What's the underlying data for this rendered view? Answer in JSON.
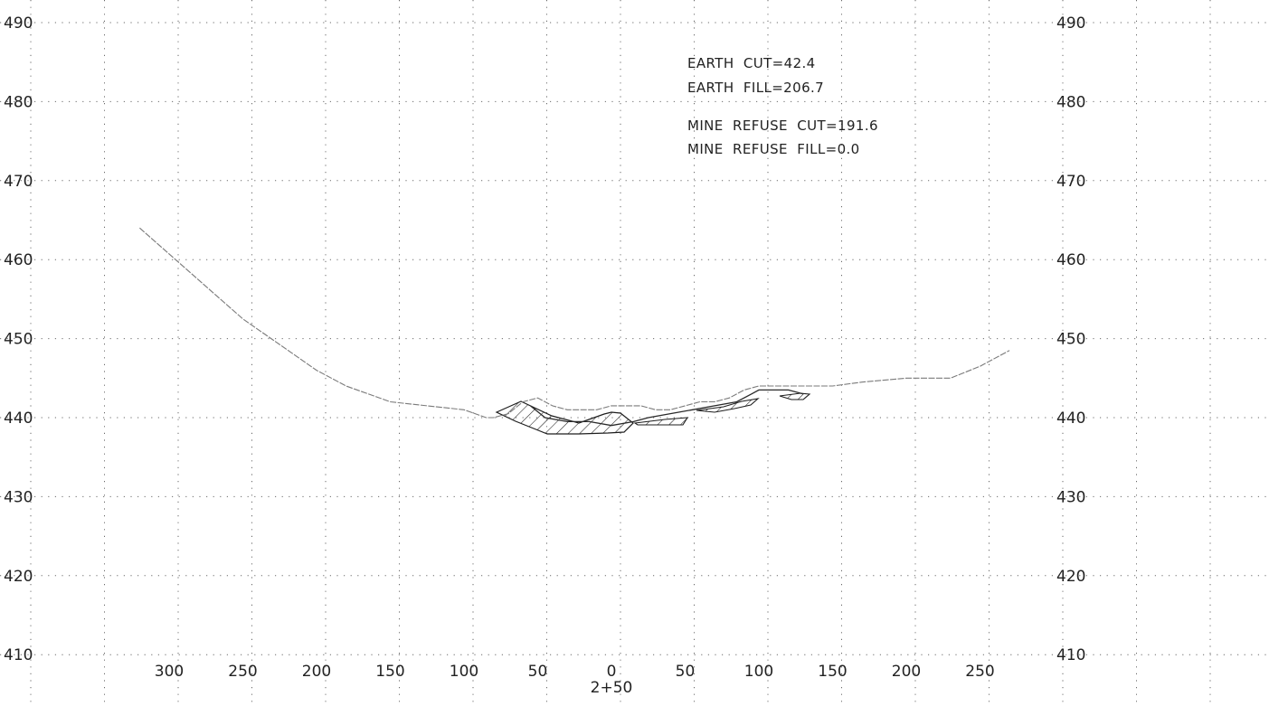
{
  "chart_data": {
    "type": "line",
    "station_label": "2+50",
    "x_tick_labels": [
      "300",
      "250",
      "200",
      "150",
      "100",
      "50",
      "0",
      "50",
      "100",
      "150",
      "200",
      "250"
    ],
    "x_tick_values": [
      -300,
      -250,
      -200,
      -150,
      -100,
      -50,
      0,
      50,
      100,
      150,
      200,
      250
    ],
    "y_tick_labels_left": [
      "490",
      "480",
      "470",
      "460",
      "450",
      "440",
      "430",
      "420",
      "410"
    ],
    "y_tick_labels_right": [
      "490",
      "480",
      "470",
      "460",
      "450",
      "440",
      "430",
      "420",
      "410"
    ],
    "y_tick_values": [
      490,
      480,
      470,
      460,
      450,
      440,
      430,
      420,
      410
    ],
    "xlim": [
      -355,
      365
    ],
    "ylim": [
      409,
      492
    ],
    "grid": true,
    "annotations": {
      "earth_cut": "EARTH  CUT=42.4",
      "earth_fill": "EARTH  FILL=206.7",
      "mine_refuse_cut": "MINE  REFUSE  CUT=191.6",
      "mine_refuse_fill": "MINE  REFUSE  FILL=0.0"
    },
    "series": [
      {
        "x": [
          -320,
          -250,
          -200,
          -180,
          -150,
          -100,
          -85,
          -80,
          -70,
          -60,
          -50,
          -40,
          -30,
          -20,
          -10,
          0,
          10,
          20,
          30,
          40,
          50,
          60,
          70,
          80,
          90,
          100,
          110,
          120,
          130,
          150,
          170,
          200,
          230,
          250,
          270
        ],
        "y": [
          464,
          452.5,
          446,
          444,
          442,
          441,
          440,
          440,
          440.5,
          442,
          442.5,
          441.5,
          441,
          441,
          441,
          441.5,
          441.5,
          441.5,
          441,
          441,
          441.5,
          442,
          442,
          442.5,
          443.5,
          444,
          444,
          444,
          444,
          444,
          444.5,
          445,
          445,
          446.5,
          448.5
        ]
      },
      {
        "x": [
          -55,
          -45,
          -30,
          -15,
          0,
          15,
          25,
          40,
          55,
          70,
          85,
          95,
          100,
          120,
          130
        ],
        "y": [
          441.5,
          440,
          439.5,
          439.5,
          439,
          439.5,
          440,
          440.5,
          441,
          441.5,
          442,
          443,
          443.5,
          443.5,
          443
        ]
      }
    ]
  }
}
